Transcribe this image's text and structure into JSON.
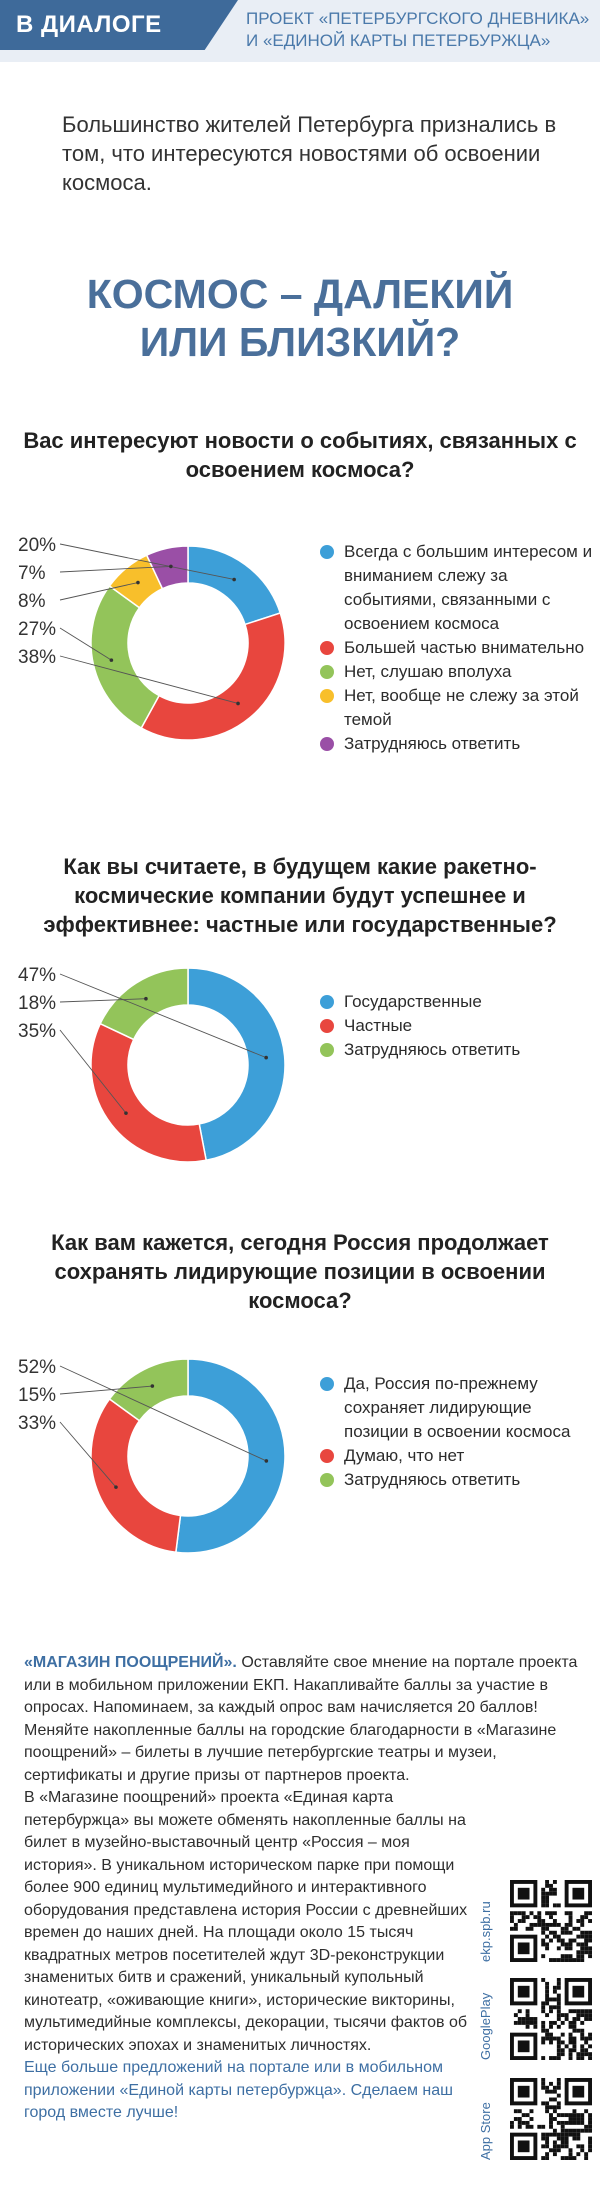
{
  "header": {
    "badge": "В ДИАЛОГЕ",
    "project_line1": "ПРОЕКТ «ПЕТЕРБУРГСКОГО ДНЕВНИКА»",
    "project_line2": "И «ЕДИНОЙ КАРТЫ ПЕТЕРБУРЖЦА»"
  },
  "intro": "Большинство жителей Петербурга признались в том, что интересуются новостями об освоении космоса.",
  "title_line1": "КОСМОС – ДАЛЕКИЙ",
  "title_line2": "ИЛИ БЛИЗКИЙ?",
  "colors": {
    "blue": "#3d9fd8",
    "red": "#e8463e",
    "green": "#93c45a",
    "yellow": "#f8bf2b",
    "purple": "#9a4fa6"
  },
  "chart_data": [
    {
      "type": "pie",
      "title": "Вас интересуют новости о событиях, связанных с освоением космоса?",
      "categories": [
        "Всегда с большим интересом и вниманием слежу за событиями, связанными с освоением космоса",
        "Большей частью внимательно",
        "Нет, слушаю вполуха",
        "Нет, вообще не слежу за этой темой",
        "Затрудняюсь ответить"
      ],
      "values": [
        20,
        38,
        27,
        8,
        7
      ],
      "labels": [
        "20%",
        "38%",
        "27%",
        "8%",
        "7%"
      ],
      "label_order": [
        "20%",
        "7%",
        "8%",
        "27%",
        "38%"
      ],
      "colors": [
        "#3d9fd8",
        "#e8463e",
        "#93c45a",
        "#f8bf2b",
        "#9a4fa6"
      ]
    },
    {
      "type": "pie",
      "title": "Как вы считаете, в будущем какие ракетно-космические компании будут успешнее и эффективнее: частные или государственные?",
      "categories": [
        "Государственные",
        "Частные",
        "Затрудняюсь ответить"
      ],
      "values": [
        47,
        35,
        18
      ],
      "labels": [
        "47%",
        "35%",
        "18%"
      ],
      "label_order": [
        "47%",
        "18%",
        "35%"
      ],
      "colors": [
        "#3d9fd8",
        "#e8463e",
        "#93c45a"
      ]
    },
    {
      "type": "pie",
      "title": "Как вам кажется, сегодня Россия продолжает сохранять лидирующие позиции в освоении космоса?",
      "categories": [
        "Да, Россия по-прежнему сохраняет лидирующие позиции в освоении космоса",
        "Думаю, что нет",
        "Затрудняюсь ответить"
      ],
      "values": [
        52,
        33,
        15
      ],
      "labels": [
        "52%",
        "33%",
        "15%"
      ],
      "label_order": [
        "52%",
        "15%",
        "33%"
      ],
      "colors": [
        "#3d9fd8",
        "#e8463e",
        "#93c45a"
      ]
    }
  ],
  "questions": [
    "Вас интересуют новости о событиях, связанных с освоением космоса?",
    "Как вы считаете, в будущем какие ракетно-космические компании будут успешнее и эффективнее: частные или государственные?",
    "Как вам кажется, сегодня Россия продолжает сохранять лидирующие позиции в освоении космоса?"
  ],
  "footer": {
    "shop_title": "«МАГАЗИН ПООЩРЕНИЙ».",
    "p1": "Оставляйте свое мнение на портале проекта или в мобильном приложении ЕКП. Накапливайте баллы за участие в опросах. Напоминаем, за каждый опрос вам начисляется 20 баллов! Меняйте накопленные баллы на городские благодарности в «Магазине поощрений» – билеты в лучшие петербургские театры и музеи, сертификаты и другие призы от партнеров проекта.",
    "p2a": "В «Магазине поощрений» проекта «Единая карта петербуржца» вы можете обменять накопленные баллы на билет в музейно-выставочный центр «Россия – моя история». В уникальном историческом парке при помощи более 900 единиц мультимедийного и интерактивного оборудования представлена история России с древнейших времен до наших дней. На площади около 15 тысяч квадратных метров посетителей ждут 3D-реконструкции знаменитых битв и сражений, уникальный купольный кинотеатр, «оживающие книги», исторические викторины, мультимедийные комплексы, декорации, тысячи фактов об исторических эпохах и знаменитых личностях.",
    "p3": "Еще больше предложений на портале или в мобильном приложении «Единой карты петербуржца». Сделаем наш город вместе лучше!",
    "qr_labels": [
      "ekp.spb.ru",
      "GooglePlay",
      "App Store"
    ]
  }
}
